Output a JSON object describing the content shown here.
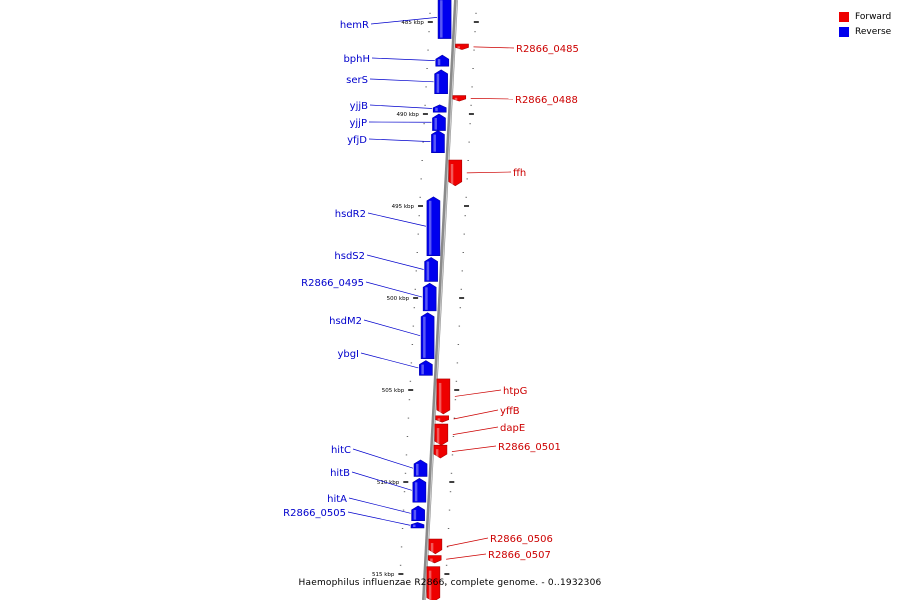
{
  "genome": {
    "caption": "Haemophilus influenzae R2866, complete genome. - 0..1932306"
  },
  "legend": {
    "forward_label": "Forward",
    "reverse_label": "Reverse",
    "forward_color": "#ee0000",
    "reverse_color": "#0000ee"
  },
  "chart_data": {
    "type": "genome-map",
    "units": "kbp",
    "visible_range_kbp": [
      483.6,
      516.5
    ],
    "ticks": [
      {
        "kbp": 485,
        "label": "485 kbp"
      },
      {
        "kbp": 490,
        "label": "490 kbp"
      },
      {
        "kbp": 495,
        "label": "495 kbp"
      },
      {
        "kbp": 500,
        "label": "500 kbp"
      },
      {
        "kbp": 505,
        "label": "505 kbp"
      },
      {
        "kbp": 510,
        "label": "510 kbp"
      },
      {
        "kbp": 515,
        "label": "515 kbp"
      }
    ],
    "genes": [
      {
        "name": "hemR",
        "strand": "reverse",
        "start_kbp": 483.6,
        "end_kbp": 485.9
      },
      {
        "name": "R2866_0485",
        "strand": "forward",
        "start_kbp": 486.2,
        "end_kbp": 486.5
      },
      {
        "name": "bphH",
        "strand": "reverse",
        "start_kbp": 486.8,
        "end_kbp": 487.4
      },
      {
        "name": "serS",
        "strand": "reverse",
        "start_kbp": 487.6,
        "end_kbp": 488.9
      },
      {
        "name": "R2866_0488",
        "strand": "forward",
        "start_kbp": 489.0,
        "end_kbp": 489.3
      },
      {
        "name": "yjjB",
        "strand": "reverse",
        "start_kbp": 489.5,
        "end_kbp": 489.9
      },
      {
        "name": "yjjP",
        "strand": "reverse",
        "start_kbp": 490.0,
        "end_kbp": 490.9
      },
      {
        "name": "yfjD",
        "strand": "reverse",
        "start_kbp": 490.9,
        "end_kbp": 492.1
      },
      {
        "name": "ffh",
        "strand": "forward",
        "start_kbp": 492.5,
        "end_kbp": 493.9
      },
      {
        "name": "hsdR2",
        "strand": "reverse",
        "start_kbp": 494.5,
        "end_kbp": 497.7
      },
      {
        "name": "hsdS2",
        "strand": "reverse",
        "start_kbp": 497.8,
        "end_kbp": 499.1
      },
      {
        "name": "R2866_0495",
        "strand": "reverse",
        "start_kbp": 499.2,
        "end_kbp": 500.7
      },
      {
        "name": "hsdM2",
        "strand": "reverse",
        "start_kbp": 500.8,
        "end_kbp": 503.3
      },
      {
        "name": "ybgI",
        "strand": "reverse",
        "start_kbp": 503.4,
        "end_kbp": 504.2
      },
      {
        "name": "htpG",
        "strand": "forward",
        "start_kbp": 504.4,
        "end_kbp": 506.3
      },
      {
        "name": "yffB",
        "strand": "forward",
        "start_kbp": 506.4,
        "end_kbp": 506.75
      },
      {
        "name": "dapE",
        "strand": "forward",
        "start_kbp": 506.85,
        "end_kbp": 508.0
      },
      {
        "name": "R2866_0501",
        "strand": "forward",
        "start_kbp": 508.0,
        "end_kbp": 508.7
      },
      {
        "name": "hitC",
        "strand": "reverse",
        "start_kbp": 508.8,
        "end_kbp": 509.7
      },
      {
        "name": "hitB",
        "strand": "reverse",
        "start_kbp": 509.8,
        "end_kbp": 511.1
      },
      {
        "name": "hitA",
        "strand": "reverse",
        "start_kbp": 511.3,
        "end_kbp": 512.1
      },
      {
        "name": "R2866_0505",
        "strand": "reverse",
        "start_kbp": 512.2,
        "end_kbp": 512.5
      },
      {
        "name": "R2866_0506",
        "strand": "forward",
        "start_kbp": 513.1,
        "end_kbp": 513.9
      },
      {
        "name": "R2866_0507",
        "strand": "forward",
        "start_kbp": 514.0,
        "end_kbp": 514.4
      },
      {
        "name": "",
        "strand": "forward",
        "start_kbp": 514.6,
        "end_kbp": 516.5
      }
    ]
  }
}
